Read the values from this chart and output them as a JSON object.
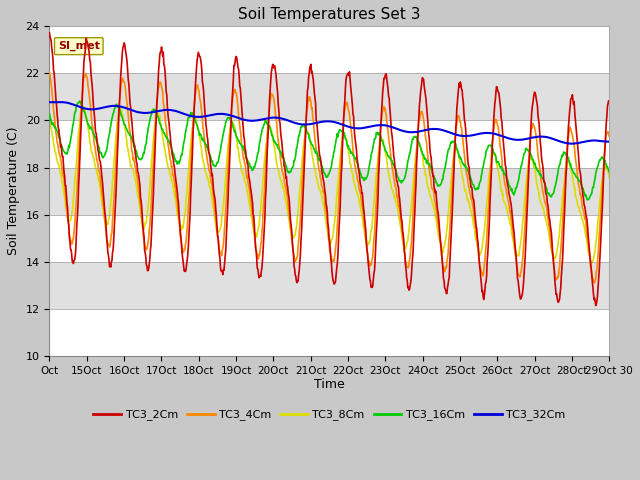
{
  "title": "Soil Temperatures Set 3",
  "ylabel": "Soil Temperature (C)",
  "xlabel": "Time",
  "ylim": [
    10,
    24
  ],
  "yticks": [
    10,
    12,
    14,
    16,
    18,
    20,
    22,
    24
  ],
  "annotation": "SI_met",
  "lines": {
    "TC3_2Cm": {
      "color": "#cc0000",
      "lw": 1.2
    },
    "TC3_4Cm": {
      "color": "#ff8800",
      "lw": 1.2
    },
    "TC3_8Cm": {
      "color": "#dddd00",
      "lw": 1.2
    },
    "TC3_16Cm": {
      "color": "#00cc00",
      "lw": 1.2
    },
    "TC3_32Cm": {
      "color": "#0000dd",
      "lw": 1.5
    }
  },
  "xtick_labels": [
    "Oct",
    "15Oct",
    "16Oct",
    "17Oct",
    "18Oct",
    "19Oct",
    "20Oct",
    "21Oct",
    "22Oct",
    "23Oct",
    "24Oct",
    "25Oct",
    "26Oct",
    "27Oct",
    "28Oct",
    "29Oct 30"
  ],
  "band_colors": [
    "#ffffff",
    "#e0e0e0"
  ],
  "num_points": 960,
  "figsize": [
    6.4,
    4.8
  ],
  "dpi": 100
}
